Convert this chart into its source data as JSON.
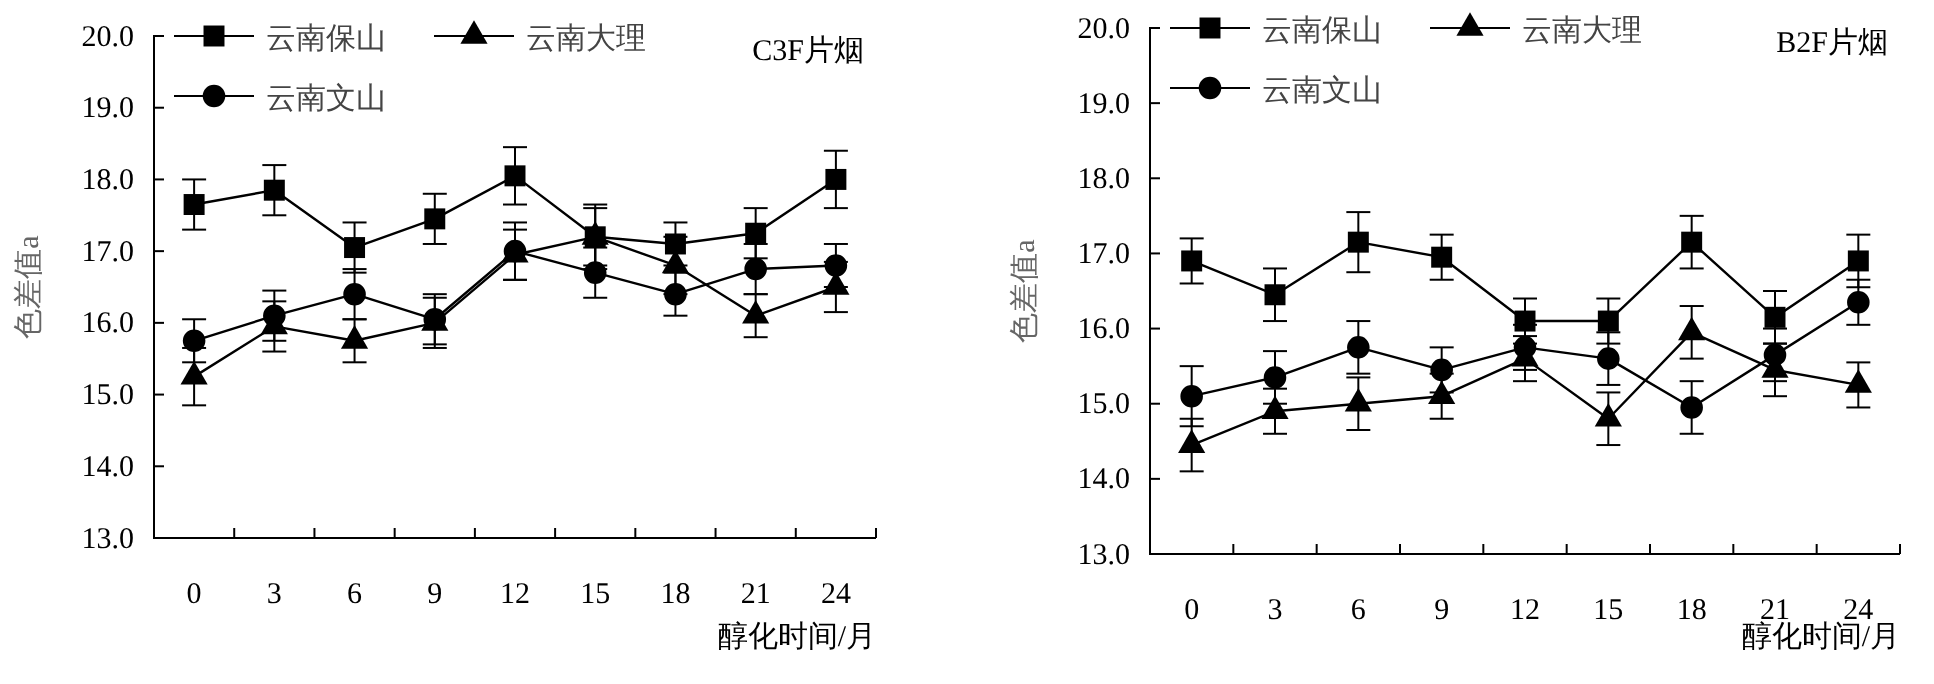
{
  "chart_data": [
    {
      "type": "line",
      "title": "C3F片烟",
      "xlabel": "醇化时间/月",
      "ylabel": "色差值a",
      "categories": [
        "0",
        "3",
        "6",
        "9",
        "12",
        "15",
        "18",
        "21",
        "24"
      ],
      "ylim": [
        13,
        20
      ],
      "yticks": [
        {
          "value": 13,
          "label": "13.0"
        },
        {
          "value": 14,
          "label": "14.0"
        },
        {
          "value": 15,
          "label": "15.0"
        },
        {
          "value": 16,
          "label": "16.0"
        },
        {
          "value": 17,
          "label": "17.0"
        },
        {
          "value": 18,
          "label": "18.0"
        },
        {
          "value": 19,
          "label": "19.0"
        },
        {
          "value": 20,
          "label": "20.0"
        }
      ],
      "legend": "top left",
      "grid": false,
      "line_style": "solid",
      "series": [
        {
          "name": "云南保山",
          "color": "#000000",
          "marker": "square",
          "values": [
            17.65,
            17.85,
            17.05,
            17.45,
            18.05,
            17.2,
            17.1,
            17.25,
            18.0
          ],
          "errors": [
            0.35,
            0.35,
            0.35,
            0.35,
            0.4,
            0.45,
            0.3,
            0.35,
            0.4
          ]
        },
        {
          "name": "云南大理",
          "color": "#000000",
          "marker": "triangle",
          "values": [
            15.25,
            15.95,
            15.75,
            16.0,
            16.95,
            17.2,
            16.8,
            16.1,
            16.5
          ],
          "errors": [
            0.4,
            0.35,
            0.3,
            0.35,
            0.35,
            0.4,
            0.4,
            0.3,
            0.35
          ]
        },
        {
          "name": "云南文山",
          "color": "#000000",
          "marker": "circle",
          "values": [
            15.75,
            16.1,
            16.4,
            16.05,
            17.0,
            16.7,
            16.4,
            16.75,
            16.8
          ],
          "errors": [
            0.3,
            0.35,
            0.35,
            0.35,
            0.4,
            0.35,
            0.3,
            0.35,
            0.3
          ]
        }
      ]
    },
    {
      "type": "line",
      "title": "B2F片烟",
      "xlabel": "醇化时间/月",
      "ylabel": "色差值a",
      "categories": [
        "0",
        "3",
        "6",
        "9",
        "12",
        "15",
        "18",
        "21",
        "24"
      ],
      "ylim": [
        13,
        20
      ],
      "yticks": [
        {
          "value": 13,
          "label": "13.0"
        },
        {
          "value": 14,
          "label": "14.0"
        },
        {
          "value": 15,
          "label": "15.0"
        },
        {
          "value": 16,
          "label": "16.0"
        },
        {
          "value": 17,
          "label": "17.0"
        },
        {
          "value": 18,
          "label": "18.0"
        },
        {
          "value": 19,
          "label": "19.0"
        },
        {
          "value": 20,
          "label": "20.0"
        }
      ],
      "legend": "top left",
      "grid": false,
      "line_style": "solid",
      "series": [
        {
          "name": "云南保山",
          "color": "#000000",
          "marker": "square",
          "values": [
            16.9,
            16.45,
            17.15,
            16.95,
            16.1,
            16.1,
            17.15,
            16.15,
            16.9
          ],
          "errors": [
            0.3,
            0.35,
            0.4,
            0.3,
            0.3,
            0.3,
            0.35,
            0.35,
            0.35
          ]
        },
        {
          "name": "云南大理",
          "color": "#000000",
          "marker": "triangle",
          "values": [
            14.45,
            14.9,
            15.0,
            15.1,
            15.6,
            14.8,
            15.95,
            15.45,
            15.25
          ],
          "errors": [
            0.35,
            0.3,
            0.35,
            0.3,
            0.3,
            0.35,
            0.35,
            0.35,
            0.3
          ]
        },
        {
          "name": "云南文山",
          "color": "#000000",
          "marker": "circle",
          "values": [
            15.1,
            15.35,
            15.75,
            15.45,
            15.75,
            15.6,
            14.95,
            15.65,
            16.35
          ],
          "errors": [
            0.4,
            0.35,
            0.35,
            0.3,
            0.3,
            0.35,
            0.35,
            0.35,
            0.3
          ]
        }
      ]
    }
  ]
}
